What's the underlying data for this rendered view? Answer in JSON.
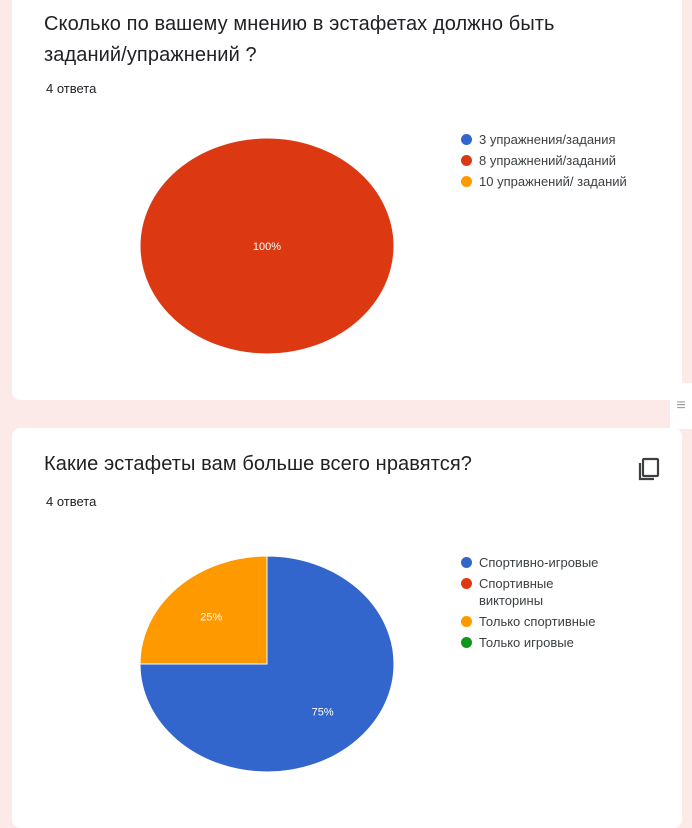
{
  "questions": [
    {
      "title": "Сколько по вашему мнению в эстафетах должно быть заданий/упражнений ?",
      "answers_count": "4 ответа",
      "legend": [
        {
          "label": "3 упражнения/задания",
          "color": "#3366cc"
        },
        {
          "label": "8 упражнений/заданий",
          "color": "#dc3912"
        },
        {
          "label": "10 упражнений/ заданий",
          "color": "#ff9900"
        }
      ],
      "pie_labels": [
        "100%"
      ],
      "chart_data": {
        "type": "pie",
        "categories": [
          "3 упражнения/задания",
          "8 упражнений/заданий",
          "10 упражнений/ заданий"
        ],
        "values": [
          0,
          100,
          0
        ],
        "colors": [
          "#3366cc",
          "#dc3912",
          "#ff9900"
        ]
      }
    },
    {
      "title": "Какие эстафеты вам больше всего нравятся?",
      "answers_count": "4 ответа",
      "copy_icon": "copy-icon",
      "legend": [
        {
          "label": "Спортивно-игровые",
          "color": "#3366cc"
        },
        {
          "label": "Спортивные викторины",
          "color": "#dc3912"
        },
        {
          "label": "Только спортивные",
          "color": "#ff9900"
        },
        {
          "label": "Только игровые",
          "color": "#109618"
        }
      ],
      "pie_labels": [
        "75%",
        "25%"
      ],
      "chart_data": {
        "type": "pie",
        "categories": [
          "Спортивно-игровые",
          "Спортивные викторины",
          "Только спортивные",
          "Только игровые"
        ],
        "values": [
          75,
          0,
          25,
          0
        ],
        "colors": [
          "#3366cc",
          "#dc3912",
          "#ff9900",
          "#109618"
        ]
      }
    }
  ],
  "divider_icon": "drag-handle-icon"
}
